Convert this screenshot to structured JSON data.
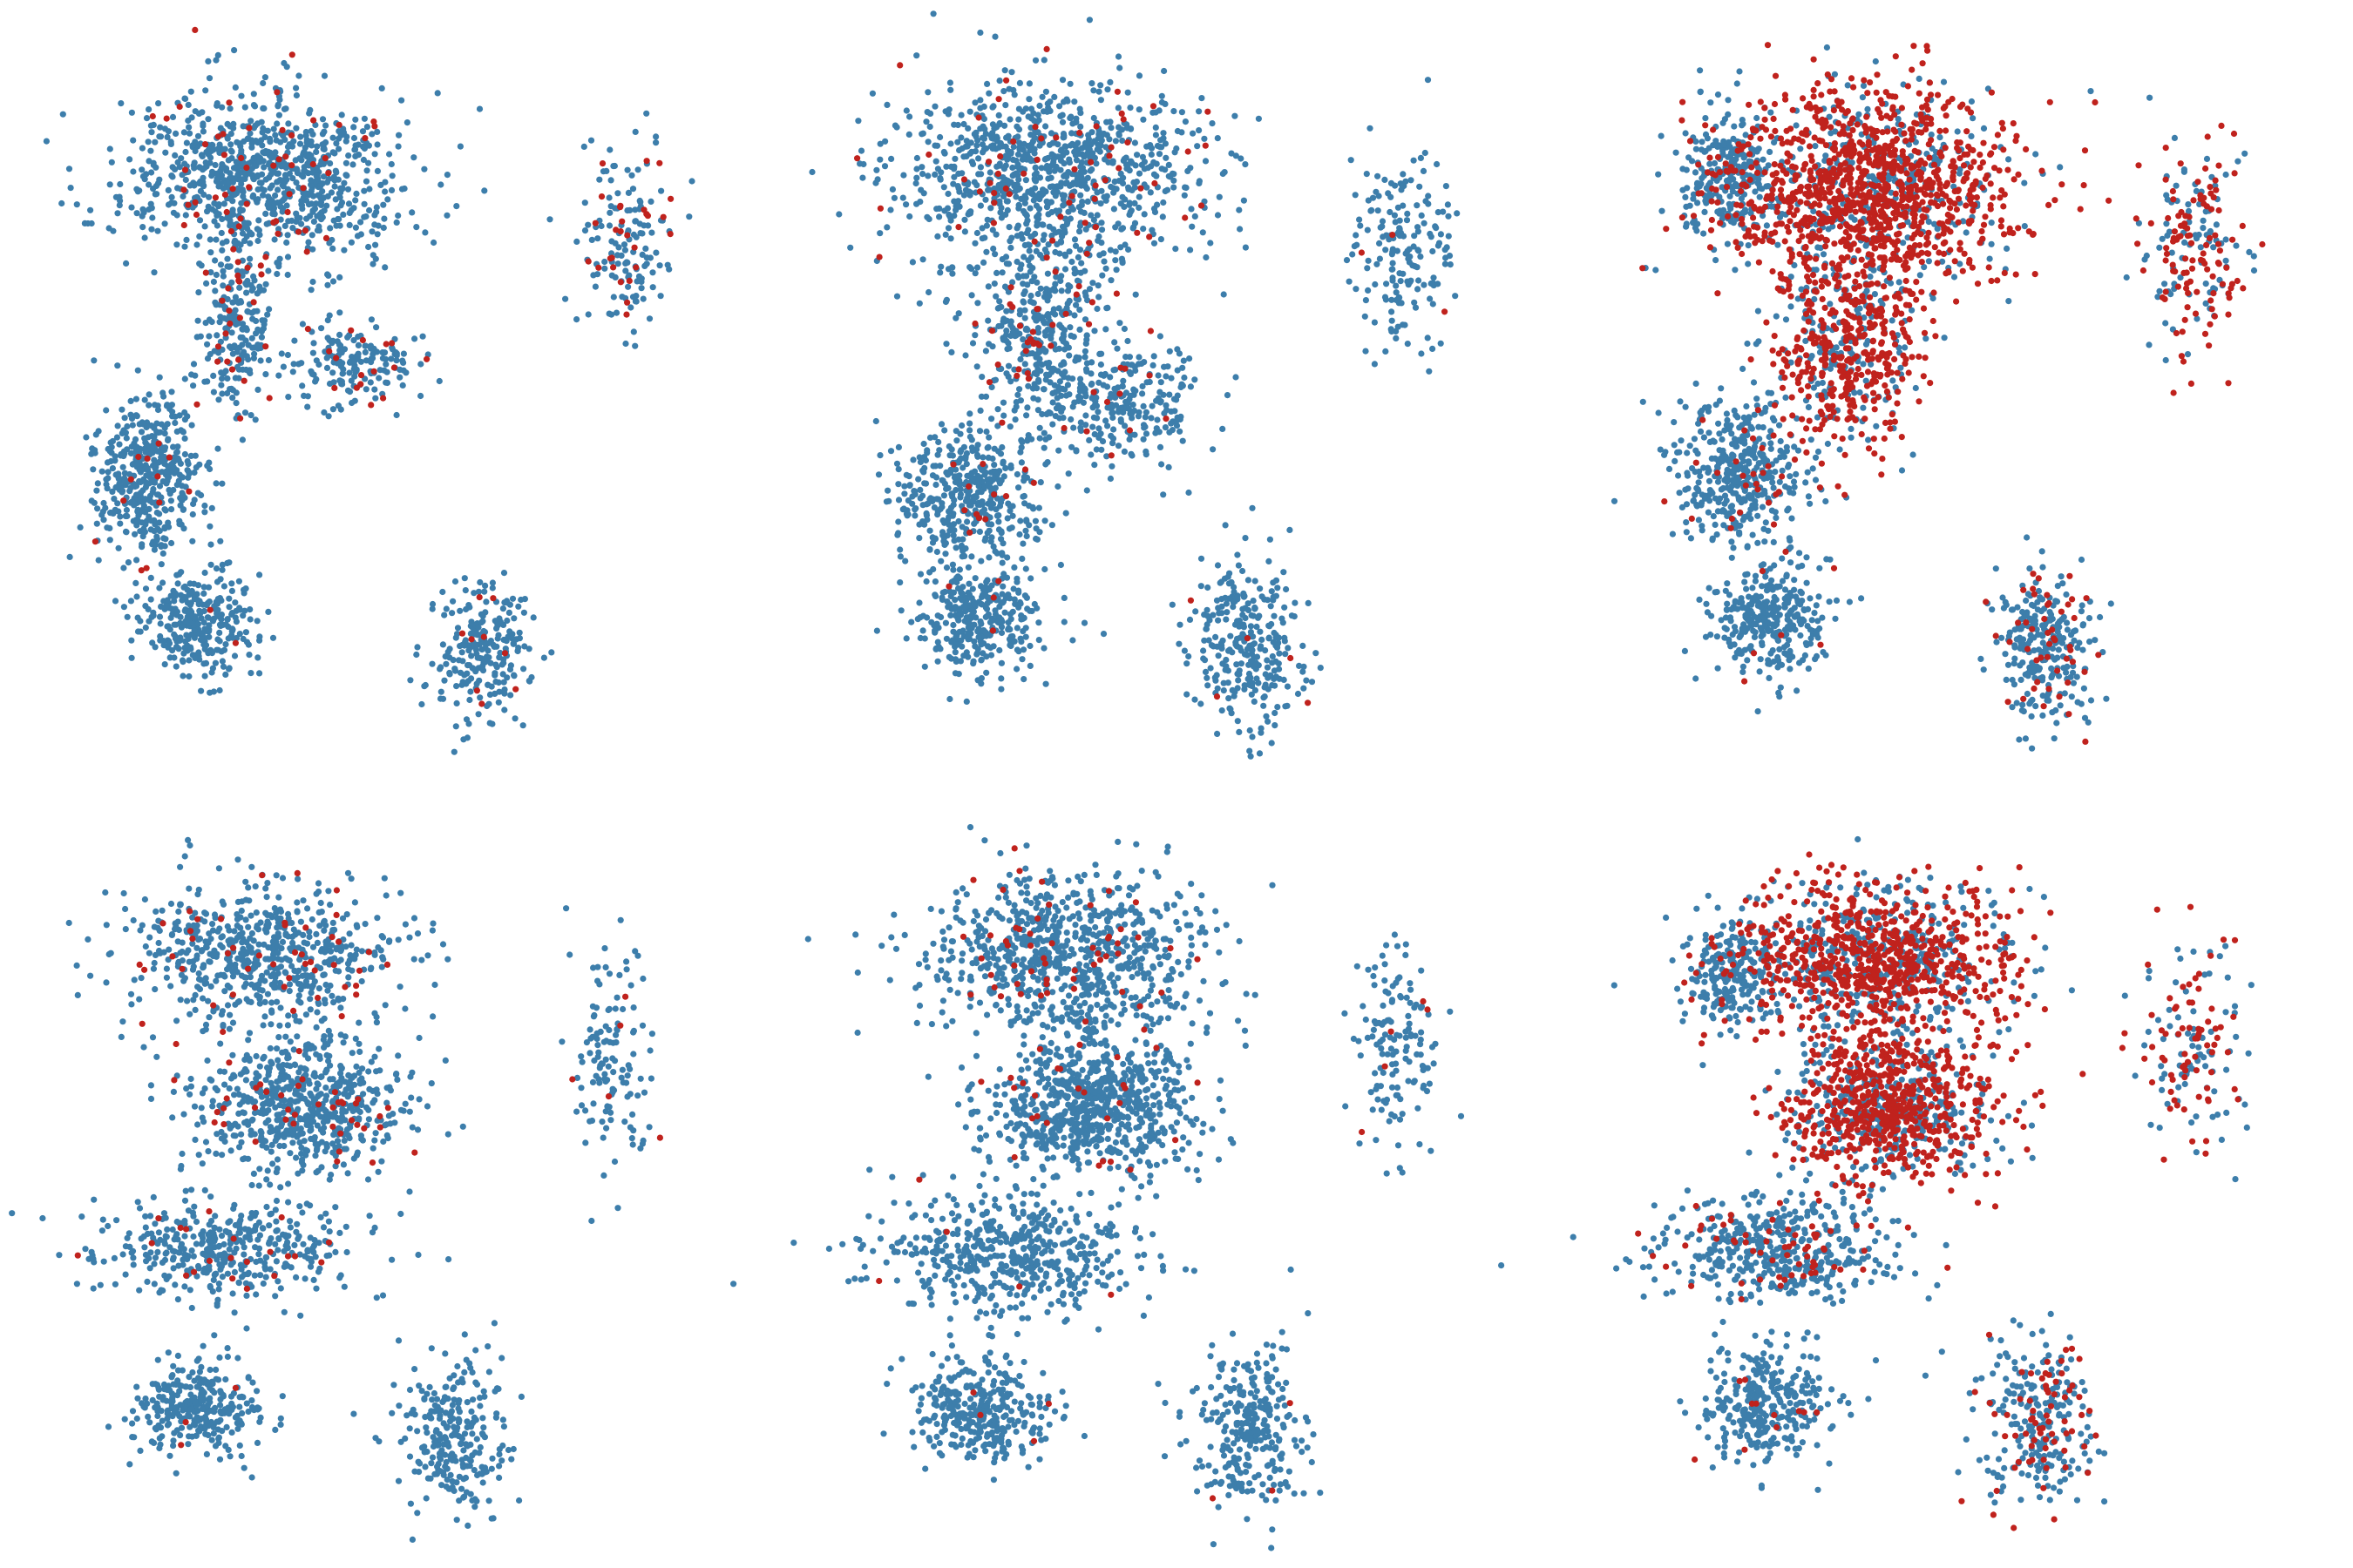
{
  "figure": {
    "rows": 2,
    "cols": 3,
    "axes_visible": false
  },
  "colors": {
    "background": "#ffffff",
    "negative": "#3d7eab",
    "positive": "#c0221d"
  },
  "chart_data": [
    {
      "type": "scatter",
      "panel": [
        1,
        1
      ],
      "title": "",
      "xlabel": "",
      "ylabel": "",
      "grid": false,
      "legend": "none",
      "clusters": [
        {
          "id": "main-upper",
          "cx": 3.0,
          "cy": 8.4,
          "rx": 2.4,
          "ry": 1.4,
          "n": 900,
          "pos_frac": 0.08
        },
        {
          "id": "main-stem",
          "cx": 2.6,
          "cy": 6.2,
          "rx": 0.6,
          "ry": 1.6,
          "n": 220,
          "pos_frac": 0.1
        },
        {
          "id": "main-lower-left",
          "cx": 1.2,
          "cy": 3.8,
          "rx": 0.9,
          "ry": 1.4,
          "n": 450,
          "pos_frac": 0.03
        },
        {
          "id": "main-right-arm",
          "cx": 4.4,
          "cy": 5.6,
          "rx": 1.3,
          "ry": 0.7,
          "n": 180,
          "pos_frac": 0.12
        },
        {
          "id": "thin-branch",
          "cx": 8.6,
          "cy": 7.4,
          "rx": 0.8,
          "ry": 1.6,
          "n": 160,
          "pos_frac": 0.15
        },
        {
          "id": "bottom-left-blob",
          "cx": 2.0,
          "cy": 1.6,
          "rx": 1.0,
          "ry": 0.9,
          "n": 300,
          "pos_frac": 0.02
        },
        {
          "id": "bottom-right-blob",
          "cx": 6.4,
          "cy": 1.2,
          "rx": 0.8,
          "ry": 1.1,
          "n": 240,
          "pos_frac": 0.04
        }
      ]
    },
    {
      "type": "scatter",
      "panel": [
        1,
        2
      ],
      "title": "",
      "xlabel": "",
      "ylabel": "",
      "grid": false,
      "legend": "none",
      "clusters": [
        {
          "id": "main-upper",
          "cx": 3.0,
          "cy": 8.4,
          "rx": 2.6,
          "ry": 1.6,
          "n": 1000,
          "pos_frac": 0.06
        },
        {
          "id": "main-stem",
          "cx": 2.9,
          "cy": 6.0,
          "rx": 1.1,
          "ry": 1.6,
          "n": 380,
          "pos_frac": 0.08
        },
        {
          "id": "main-lower-left",
          "cx": 1.8,
          "cy": 3.6,
          "rx": 1.3,
          "ry": 1.2,
          "n": 420,
          "pos_frac": 0.02
        },
        {
          "id": "main-right-arm",
          "cx": 4.2,
          "cy": 4.9,
          "rx": 1.3,
          "ry": 1.0,
          "n": 250,
          "pos_frac": 0.05
        },
        {
          "id": "thin-branch",
          "cx": 8.5,
          "cy": 7.2,
          "rx": 0.9,
          "ry": 1.7,
          "n": 180,
          "pos_frac": 0.04
        },
        {
          "id": "bottom-left-blob",
          "cx": 2.0,
          "cy": 1.7,
          "rx": 1.1,
          "ry": 0.9,
          "n": 320,
          "pos_frac": 0.01
        },
        {
          "id": "bottom-right-blob",
          "cx": 6.1,
          "cy": 1.3,
          "rx": 0.9,
          "ry": 1.4,
          "n": 300,
          "pos_frac": 0.01
        }
      ]
    },
    {
      "type": "scatter",
      "panel": [
        1,
        3
      ],
      "title": "",
      "xlabel": "",
      "ylabel": "",
      "grid": false,
      "legend": "none",
      "clusters": [
        {
          "id": "main-upper",
          "cx": 3.6,
          "cy": 8.2,
          "rx": 2.4,
          "ry": 1.7,
          "n": 1400,
          "pos_frac": 0.72
        },
        {
          "id": "main-upper-left",
          "cx": 1.4,
          "cy": 8.4,
          "rx": 0.8,
          "ry": 1.0,
          "n": 260,
          "pos_frac": 0.04
        },
        {
          "id": "main-stem",
          "cx": 3.2,
          "cy": 5.8,
          "rx": 1.2,
          "ry": 1.6,
          "n": 520,
          "pos_frac": 0.68
        },
        {
          "id": "main-lower-left",
          "cx": 1.6,
          "cy": 3.9,
          "rx": 1.2,
          "ry": 1.2,
          "n": 420,
          "pos_frac": 0.06
        },
        {
          "id": "thin-branch",
          "cx": 8.6,
          "cy": 7.4,
          "rx": 0.9,
          "ry": 1.7,
          "n": 200,
          "pos_frac": 0.55
        },
        {
          "id": "bottom-left-blob",
          "cx": 2.0,
          "cy": 1.7,
          "rx": 1.0,
          "ry": 0.9,
          "n": 320,
          "pos_frac": 0.02
        },
        {
          "id": "bottom-right-blob",
          "cx": 6.3,
          "cy": 1.3,
          "rx": 0.9,
          "ry": 1.3,
          "n": 280,
          "pos_frac": 0.14
        }
      ]
    },
    {
      "type": "scatter",
      "panel": [
        2,
        1
      ],
      "title": "",
      "xlabel": "",
      "ylabel": "",
      "grid": false,
      "legend": "none",
      "clusters": [
        {
          "id": "main-upper",
          "cx": 3.0,
          "cy": 8.5,
          "rx": 2.3,
          "ry": 1.2,
          "n": 650,
          "pos_frac": 0.06
        },
        {
          "id": "main-middle",
          "cx": 3.6,
          "cy": 6.2,
          "rx": 1.8,
          "ry": 1.1,
          "n": 650,
          "pos_frac": 0.07
        },
        {
          "id": "main-lower",
          "cx": 2.4,
          "cy": 4.0,
          "rx": 2.3,
          "ry": 0.9,
          "n": 420,
          "pos_frac": 0.05
        },
        {
          "id": "thin-branch",
          "cx": 8.4,
          "cy": 7.0,
          "rx": 0.7,
          "ry": 1.9,
          "n": 130,
          "pos_frac": 0.06
        },
        {
          "id": "bottom-left-blob",
          "cx": 2.0,
          "cy": 1.6,
          "rx": 1.1,
          "ry": 0.8,
          "n": 300,
          "pos_frac": 0.02
        },
        {
          "id": "bottom-right-blob",
          "cx": 6.0,
          "cy": 1.3,
          "rx": 1.0,
          "ry": 1.3,
          "n": 260,
          "pos_frac": 0.01
        }
      ]
    },
    {
      "type": "scatter",
      "panel": [
        2,
        2
      ],
      "title": "",
      "xlabel": "",
      "ylabel": "",
      "grid": false,
      "legend": "none",
      "clusters": [
        {
          "id": "main-upper",
          "cx": 3.2,
          "cy": 8.5,
          "rx": 2.4,
          "ry": 1.3,
          "n": 800,
          "pos_frac": 0.05
        },
        {
          "id": "main-middle",
          "cx": 3.7,
          "cy": 6.2,
          "rx": 1.9,
          "ry": 1.2,
          "n": 800,
          "pos_frac": 0.04
        },
        {
          "id": "main-lower",
          "cx": 2.4,
          "cy": 4.0,
          "rx": 2.3,
          "ry": 1.0,
          "n": 520,
          "pos_frac": 0.02
        },
        {
          "id": "thin-branch",
          "cx": 8.4,
          "cy": 7.0,
          "rx": 0.8,
          "ry": 1.7,
          "n": 140,
          "pos_frac": 0.03
        },
        {
          "id": "bottom-left-blob",
          "cx": 2.0,
          "cy": 1.6,
          "rx": 1.2,
          "ry": 0.9,
          "n": 330,
          "pos_frac": 0.01
        },
        {
          "id": "bottom-right-blob",
          "cx": 6.1,
          "cy": 1.3,
          "rx": 1.0,
          "ry": 1.4,
          "n": 290,
          "pos_frac": 0.01
        }
      ]
    },
    {
      "type": "scatter",
      "panel": [
        2,
        3
      ],
      "title": "",
      "xlabel": "",
      "ylabel": "",
      "grid": false,
      "legend": "none",
      "clusters": [
        {
          "id": "main-upper",
          "cx": 3.6,
          "cy": 8.4,
          "rx": 2.3,
          "ry": 1.3,
          "n": 1100,
          "pos_frac": 0.66
        },
        {
          "id": "main-upper-left",
          "cx": 1.4,
          "cy": 8.2,
          "rx": 0.8,
          "ry": 1.0,
          "n": 220,
          "pos_frac": 0.05
        },
        {
          "id": "main-middle",
          "cx": 3.9,
          "cy": 6.2,
          "rx": 1.8,
          "ry": 1.2,
          "n": 950,
          "pos_frac": 0.64
        },
        {
          "id": "main-lower",
          "cx": 2.2,
          "cy": 4.0,
          "rx": 2.1,
          "ry": 0.9,
          "n": 480,
          "pos_frac": 0.12
        },
        {
          "id": "thin-branch",
          "cx": 8.6,
          "cy": 7.0,
          "rx": 0.8,
          "ry": 1.7,
          "n": 150,
          "pos_frac": 0.45
        },
        {
          "id": "bottom-left-blob",
          "cx": 2.0,
          "cy": 1.7,
          "rx": 1.1,
          "ry": 0.9,
          "n": 320,
          "pos_frac": 0.02
        },
        {
          "id": "bottom-right-blob",
          "cx": 6.2,
          "cy": 1.4,
          "rx": 1.0,
          "ry": 1.4,
          "n": 280,
          "pos_frac": 0.28
        }
      ]
    }
  ]
}
